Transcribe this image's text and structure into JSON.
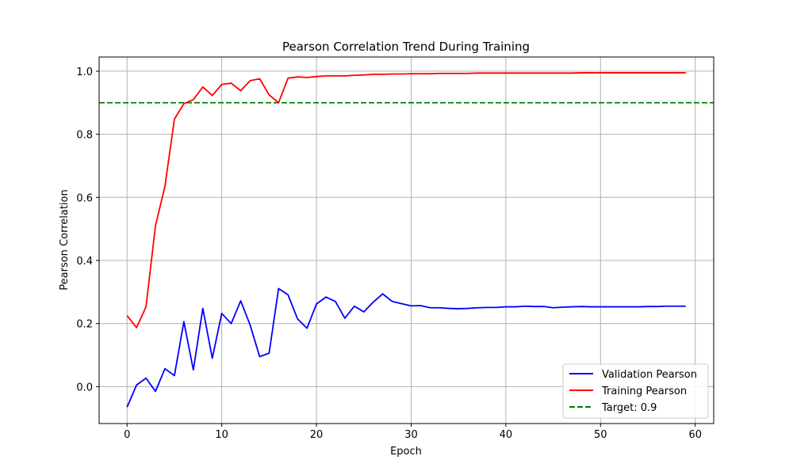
{
  "chart_data": {
    "type": "line",
    "title": "Pearson Correlation Trend During Training",
    "xlabel": "Epoch",
    "ylabel": "Pearson Correlation",
    "xlim": [
      -2.95,
      61.95
    ],
    "ylim": [
      -0.117,
      1.045
    ],
    "xticks": [
      0,
      10,
      20,
      30,
      40,
      50,
      60
    ],
    "yticks": [
      0.0,
      0.2,
      0.4,
      0.6,
      0.8,
      1.0
    ],
    "grid": true,
    "legend_position": "bottom-right",
    "x": [
      0,
      1,
      2,
      3,
      4,
      5,
      6,
      7,
      8,
      9,
      10,
      11,
      12,
      13,
      14,
      15,
      16,
      17,
      18,
      19,
      20,
      21,
      22,
      23,
      24,
      25,
      26,
      27,
      28,
      29,
      30,
      31,
      32,
      33,
      34,
      35,
      36,
      37,
      38,
      39,
      40,
      41,
      42,
      43,
      44,
      45,
      46,
      47,
      48,
      49,
      50,
      51,
      52,
      53,
      54,
      55,
      56,
      57,
      58,
      59
    ],
    "series": [
      {
        "name": "Validation Pearson",
        "color": "#0000ff",
        "style": "solid",
        "values": [
          -0.065,
          0.005,
          0.027,
          -0.015,
          0.057,
          0.035,
          0.206,
          0.053,
          0.248,
          0.09,
          0.232,
          0.2,
          0.272,
          0.195,
          0.095,
          0.106,
          0.311,
          0.291,
          0.215,
          0.185,
          0.262,
          0.284,
          0.27,
          0.217,
          0.255,
          0.237,
          0.268,
          0.294,
          0.27,
          0.263,
          0.256,
          0.257,
          0.25,
          0.25,
          0.248,
          0.247,
          0.248,
          0.25,
          0.251,
          0.251,
          0.253,
          0.253,
          0.255,
          0.254,
          0.254,
          0.25,
          0.252,
          0.253,
          0.254,
          0.253,
          0.253,
          0.253,
          0.253,
          0.253,
          0.253,
          0.254,
          0.254,
          0.255,
          0.255,
          0.255
        ]
      },
      {
        "name": "Training Pearson",
        "color": "#ff0000",
        "style": "solid",
        "values": [
          0.225,
          0.187,
          0.253,
          0.51,
          0.635,
          0.848,
          0.897,
          0.91,
          0.95,
          0.923,
          0.958,
          0.962,
          0.938,
          0.97,
          0.976,
          0.925,
          0.9,
          0.978,
          0.982,
          0.98,
          0.983,
          0.985,
          0.985,
          0.985,
          0.987,
          0.988,
          0.99,
          0.99,
          0.991,
          0.991,
          0.992,
          0.992,
          0.992,
          0.993,
          0.993,
          0.993,
          0.993,
          0.994,
          0.994,
          0.994,
          0.994,
          0.994,
          0.994,
          0.994,
          0.994,
          0.994,
          0.994,
          0.994,
          0.995,
          0.995,
          0.995,
          0.995,
          0.995,
          0.995,
          0.995,
          0.995,
          0.995,
          0.995,
          0.995,
          0.995
        ]
      }
    ],
    "reference_lines": [
      {
        "name": "Target: 0.9",
        "y": 0.9,
        "color": "#008000",
        "style": "dashed"
      }
    ]
  }
}
